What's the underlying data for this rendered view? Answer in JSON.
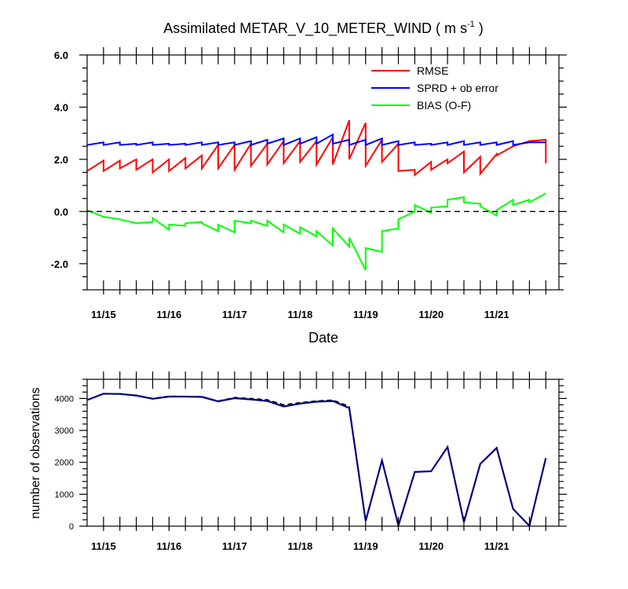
{
  "chart_data": [
    {
      "type": "line",
      "title": "Assimilated METAR_V_10_METER_WIND ( m s",
      "title_superscript": "-1",
      "title_suffix": " )",
      "xlabel": "Date",
      "ylabel": "",
      "xlim": [
        0,
        14.4
      ],
      "ylim": [
        -3.0,
        6.0
      ],
      "x_tick_labels": [
        {
          "x": 0.5,
          "label": "11/15"
        },
        {
          "x": 2.5,
          "label": "11/16"
        },
        {
          "x": 4.5,
          "label": "11/17"
        },
        {
          "x": 6.5,
          "label": "11/18"
        },
        {
          "x": 8.5,
          "label": "11/19"
        },
        {
          "x": 10.5,
          "label": "11/20"
        },
        {
          "x": 12.5,
          "label": "11/21"
        }
      ],
      "y_tick_labels": [
        "6.0",
        "4.0",
        "2.0",
        "0.0",
        "-2.0"
      ],
      "y_ticks": [
        6.0,
        4.0,
        2.0,
        0.0,
        -2.0
      ],
      "reference_line": {
        "y": 0.0,
        "style": "dashed",
        "color": "#000000"
      },
      "legend": {
        "placement": "top-right"
      },
      "grid": false,
      "series": [
        {
          "name": "RMSE",
          "color": "#ff0000",
          "values": [
            [
              0.0,
              1.55
            ],
            [
              0.5,
              1.95
            ],
            [
              0.5,
              1.55
            ],
            [
              1.0,
              1.95
            ],
            [
              1.0,
              1.65
            ],
            [
              1.5,
              2.0
            ],
            [
              1.5,
              1.6
            ],
            [
              2.0,
              2.0
            ],
            [
              2.0,
              1.5
            ],
            [
              2.5,
              2.0
            ],
            [
              2.5,
              1.55
            ],
            [
              3.0,
              2.05
            ],
            [
              3.0,
              1.65
            ],
            [
              3.5,
              2.15
            ],
            [
              3.5,
              1.65
            ],
            [
              4.0,
              2.55
            ],
            [
              4.0,
              1.65
            ],
            [
              4.5,
              2.55
            ],
            [
              4.5,
              1.6
            ],
            [
              5.0,
              2.6
            ],
            [
              5.0,
              1.75
            ],
            [
              5.5,
              2.6
            ],
            [
              5.5,
              1.8
            ],
            [
              6.0,
              2.7
            ],
            [
              6.0,
              1.85
            ],
            [
              6.5,
              2.7
            ],
            [
              6.5,
              1.9
            ],
            [
              7.0,
              2.7
            ],
            [
              7.0,
              1.8
            ],
            [
              7.5,
              2.85
            ],
            [
              7.5,
              1.8
            ],
            [
              8.0,
              3.5
            ],
            [
              8.0,
              2.0
            ],
            [
              8.5,
              3.4
            ],
            [
              8.5,
              1.75
            ],
            [
              9.0,
              2.75
            ],
            [
              9.0,
              1.9
            ],
            [
              9.5,
              2.6
            ],
            [
              9.5,
              1.55
            ],
            [
              10.0,
              1.6
            ],
            [
              10.0,
              1.4
            ],
            [
              10.5,
              1.9
            ],
            [
              10.5,
              1.6
            ],
            [
              11.0,
              2.0
            ],
            [
              11.0,
              1.85
            ],
            [
              11.5,
              2.3
            ],
            [
              11.5,
              1.5
            ],
            [
              12.0,
              2.1
            ],
            [
              12.0,
              1.45
            ],
            [
              12.5,
              2.2
            ],
            [
              12.5,
              2.15
            ],
            [
              13.0,
              2.5
            ],
            [
              13.0,
              2.5
            ],
            [
              13.5,
              2.7
            ],
            [
              14.0,
              2.75
            ],
            [
              14.0,
              1.85
            ]
          ]
        },
        {
          "name": "SPRD + ob error",
          "color": "#0000ff",
          "values": [
            [
              0.0,
              2.55
            ],
            [
              0.5,
              2.65
            ],
            [
              0.5,
              2.55
            ],
            [
              1.0,
              2.65
            ],
            [
              1.0,
              2.55
            ],
            [
              1.5,
              2.6
            ],
            [
              1.5,
              2.55
            ],
            [
              2.0,
              2.65
            ],
            [
              2.0,
              2.55
            ],
            [
              2.5,
              2.6
            ],
            [
              2.5,
              2.55
            ],
            [
              3.0,
              2.6
            ],
            [
              3.0,
              2.55
            ],
            [
              3.5,
              2.65
            ],
            [
              3.5,
              2.55
            ],
            [
              4.0,
              2.65
            ],
            [
              4.0,
              2.55
            ],
            [
              4.5,
              2.65
            ],
            [
              4.5,
              2.55
            ],
            [
              5.0,
              2.7
            ],
            [
              5.0,
              2.55
            ],
            [
              5.5,
              2.75
            ],
            [
              5.5,
              2.6
            ],
            [
              6.0,
              2.8
            ],
            [
              6.0,
              2.55
            ],
            [
              6.5,
              2.8
            ],
            [
              6.5,
              2.6
            ],
            [
              7.0,
              2.85
            ],
            [
              7.0,
              2.6
            ],
            [
              7.5,
              2.95
            ],
            [
              7.5,
              2.6
            ],
            [
              8.0,
              2.75
            ],
            [
              8.0,
              2.55
            ],
            [
              8.5,
              2.75
            ],
            [
              8.5,
              2.55
            ],
            [
              9.0,
              2.8
            ],
            [
              9.0,
              2.55
            ],
            [
              9.5,
              2.7
            ],
            [
              9.5,
              2.55
            ],
            [
              10.0,
              2.65
            ],
            [
              10.0,
              2.55
            ],
            [
              10.5,
              2.6
            ],
            [
              10.5,
              2.55
            ],
            [
              11.0,
              2.65
            ],
            [
              11.0,
              2.55
            ],
            [
              11.5,
              2.7
            ],
            [
              11.5,
              2.55
            ],
            [
              12.0,
              2.65
            ],
            [
              12.0,
              2.55
            ],
            [
              12.5,
              2.65
            ],
            [
              12.5,
              2.55
            ],
            [
              13.0,
              2.7
            ],
            [
              13.0,
              2.55
            ],
            [
              13.5,
              2.65
            ],
            [
              14.0,
              2.65
            ]
          ]
        },
        {
          "name": "BIAS (O-F)",
          "color": "#00ff00",
          "values": [
            [
              0.0,
              0.05
            ],
            [
              0.5,
              -0.2
            ],
            [
              1.0,
              -0.3
            ],
            [
              1.5,
              -0.45
            ],
            [
              2.0,
              -0.4
            ],
            [
              2.0,
              -0.25
            ],
            [
              2.5,
              -0.7
            ],
            [
              2.5,
              -0.5
            ],
            [
              3.0,
              -0.55
            ],
            [
              3.0,
              -0.45
            ],
            [
              3.5,
              -0.4
            ],
            [
              3.5,
              -0.45
            ],
            [
              4.0,
              -0.75
            ],
            [
              4.0,
              -0.5
            ],
            [
              4.5,
              -0.8
            ],
            [
              4.5,
              -0.35
            ],
            [
              5.0,
              -0.45
            ],
            [
              5.0,
              -0.35
            ],
            [
              5.5,
              -0.55
            ],
            [
              5.5,
              -0.35
            ],
            [
              6.0,
              -0.8
            ],
            [
              6.0,
              -0.5
            ],
            [
              6.5,
              -0.85
            ],
            [
              6.5,
              -0.6
            ],
            [
              7.0,
              -0.95
            ],
            [
              7.0,
              -0.75
            ],
            [
              7.5,
              -1.3
            ],
            [
              7.5,
              -0.65
            ],
            [
              8.0,
              -1.35
            ],
            [
              8.0,
              -1.0
            ],
            [
              8.5,
              -2.25
            ],
            [
              8.5,
              -1.4
            ],
            [
              9.0,
              -1.55
            ],
            [
              9.0,
              -0.75
            ],
            [
              9.5,
              -0.65
            ],
            [
              9.5,
              -0.3
            ],
            [
              10.0,
              0.0
            ],
            [
              10.0,
              0.25
            ],
            [
              10.5,
              -0.05
            ],
            [
              10.5,
              0.15
            ],
            [
              11.0,
              0.2
            ],
            [
              11.0,
              0.45
            ],
            [
              11.5,
              0.55
            ],
            [
              11.5,
              0.35
            ],
            [
              12.0,
              0.3
            ],
            [
              12.0,
              0.2
            ],
            [
              12.5,
              -0.15
            ],
            [
              12.5,
              0.05
            ],
            [
              13.0,
              0.45
            ],
            [
              13.0,
              0.25
            ],
            [
              13.5,
              0.45
            ],
            [
              13.5,
              0.35
            ],
            [
              14.0,
              0.7
            ]
          ]
        }
      ]
    },
    {
      "type": "line",
      "title": "",
      "xlabel": "",
      "ylabel": "number of observations",
      "xlim": [
        0,
        14.4
      ],
      "ylim": [
        0,
        4600
      ],
      "x_tick_labels": [
        {
          "x": 0.5,
          "label": "11/15"
        },
        {
          "x": 2.5,
          "label": "11/16"
        },
        {
          "x": 4.5,
          "label": "11/17"
        },
        {
          "x": 6.5,
          "label": "11/18"
        },
        {
          "x": 8.5,
          "label": "11/19"
        },
        {
          "x": 10.5,
          "label": "11/20"
        },
        {
          "x": 12.5,
          "label": "11/21"
        }
      ],
      "y_tick_labels": [
        "4000",
        "3000",
        "2000",
        "1000",
        "0"
      ],
      "y_ticks": [
        4000,
        3000,
        2000,
        1000,
        0
      ],
      "grid": false,
      "series": [
        {
          "color": "#000000",
          "dashed": true,
          "values": [
            [
              0.0,
              3950
            ],
            [
              0.5,
              4150
            ],
            [
              1.0,
              4150
            ],
            [
              1.5,
              4100
            ],
            [
              2.0,
              4000
            ],
            [
              2.5,
              4070
            ],
            [
              3.0,
              4060
            ],
            [
              3.5,
              4060
            ],
            [
              4.0,
              3920
            ],
            [
              4.5,
              4030
            ],
            [
              5.0,
              4000
            ],
            [
              5.5,
              3960
            ],
            [
              6.0,
              3800
            ],
            [
              6.5,
              3870
            ],
            [
              7.0,
              3920
            ],
            [
              7.5,
              3950
            ],
            [
              8.0,
              3750
            ],
            [
              8.5,
              170
            ],
            [
              9.0,
              2060
            ],
            [
              9.5,
              30
            ],
            [
              10.0,
              1700
            ],
            [
              10.5,
              1720
            ],
            [
              11.0,
              2480
            ],
            [
              11.5,
              140
            ],
            [
              12.0,
              1950
            ],
            [
              12.5,
              2450
            ],
            [
              13.0,
              540
            ],
            [
              13.5,
              20
            ],
            [
              14.0,
              2130
            ]
          ]
        },
        {
          "color": "#000080",
          "dashed": false,
          "values": [
            [
              0.0,
              3950
            ],
            [
              0.5,
              4150
            ],
            [
              1.0,
              4140
            ],
            [
              1.5,
              4090
            ],
            [
              2.0,
              3990
            ],
            [
              2.5,
              4060
            ],
            [
              3.0,
              4060
            ],
            [
              3.5,
              4050
            ],
            [
              4.0,
              3910
            ],
            [
              4.5,
              4010
            ],
            [
              5.0,
              3970
            ],
            [
              5.5,
              3920
            ],
            [
              6.0,
              3750
            ],
            [
              6.5,
              3840
            ],
            [
              7.0,
              3900
            ],
            [
              7.5,
              3920
            ],
            [
              8.0,
              3700
            ],
            [
              8.5,
              160
            ],
            [
              9.0,
              2060
            ],
            [
              9.5,
              20
            ],
            [
              10.0,
              1700
            ],
            [
              10.5,
              1720
            ],
            [
              11.0,
              2480
            ],
            [
              11.5,
              130
            ],
            [
              12.0,
              1950
            ],
            [
              12.5,
              2450
            ],
            [
              13.0,
              540
            ],
            [
              13.5,
              10
            ],
            [
              14.0,
              2130
            ]
          ]
        }
      ]
    }
  ]
}
